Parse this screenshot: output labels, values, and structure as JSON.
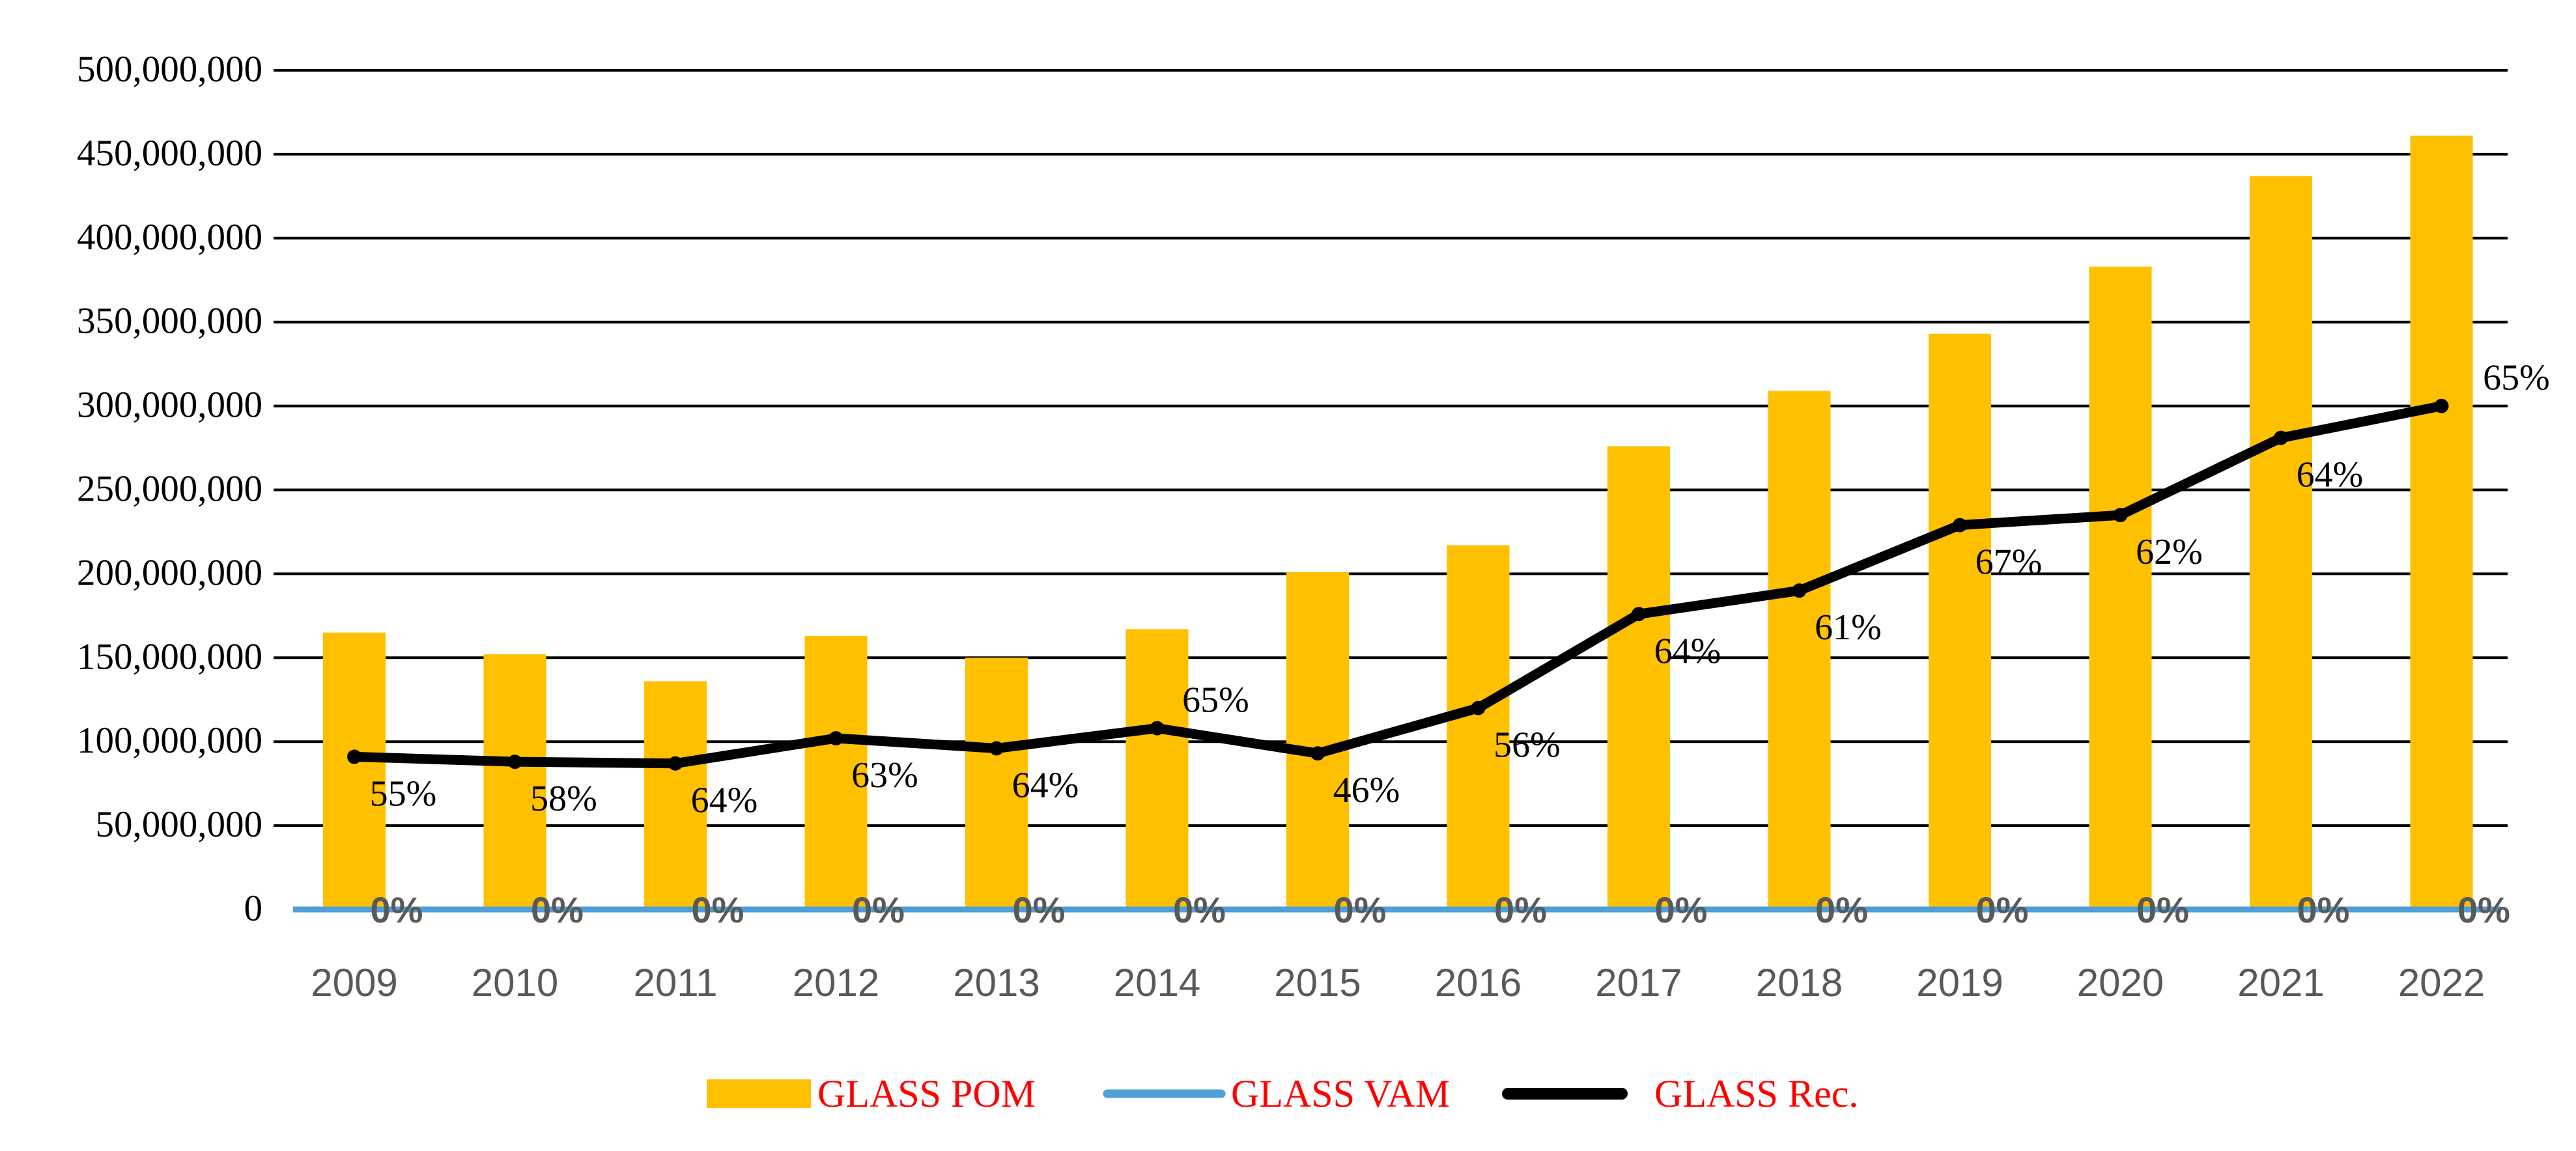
{
  "chart_data": {
    "type": "bar",
    "title": "",
    "xlabel": "",
    "ylabel": "",
    "ylim": [
      0,
      500000000
    ],
    "yticks": [
      0,
      50000000,
      100000000,
      150000000,
      200000000,
      250000000,
      300000000,
      350000000,
      400000000,
      450000000,
      500000000
    ],
    "ytick_labels": [
      "0",
      "50,000,000",
      "100,000,000",
      "150,000,000",
      "200,000,000",
      "250,000,000",
      "300,000,000",
      "350,000,000",
      "400,000,000",
      "450,000,000",
      "500,000,000"
    ],
    "categories": [
      "2009",
      "2010",
      "2011",
      "2012",
      "2013",
      "2014",
      "2015",
      "2016",
      "2017",
      "2018",
      "2019",
      "2020",
      "2021",
      "2022"
    ],
    "grid": true,
    "legend_position": "bottom",
    "series": [
      {
        "name": "GLASS POM",
        "kind": "bar",
        "color": "#FFC000",
        "values": [
          165000000,
          152000000,
          136000000,
          163000000,
          150000000,
          167000000,
          201000000,
          217000000,
          276000000,
          309000000,
          343000000,
          383000000,
          437000000,
          461000000
        ]
      },
      {
        "name": "GLASS VAM",
        "kind": "line",
        "color": "#4F9FD8",
        "values": [
          0,
          0,
          0,
          0,
          0,
          0,
          0,
          0,
          0,
          0,
          0,
          0,
          0,
          0
        ],
        "labels": [
          "0%",
          "0%",
          "0%",
          "0%",
          "0%",
          "0%",
          "0%",
          "0%",
          "0%",
          "0%",
          "0%",
          "0%",
          "0%",
          "0%"
        ],
        "label_color": "#595959"
      },
      {
        "name": "GLASS Rec.",
        "kind": "line",
        "color": "#000000",
        "values": [
          91000000,
          88000000,
          87000000,
          102000000,
          96000000,
          108000000,
          93000000,
          120000000,
          176000000,
          190000000,
          229000000,
          235000000,
          281000000,
          300000000
        ],
        "labels": [
          "55%",
          "58%",
          "64%",
          "63%",
          "64%",
          "65%",
          "46%",
          "56%",
          "64%",
          "61%",
          "67%",
          "62%",
          "64%",
          "65%"
        ],
        "label_color": "#000000"
      }
    ],
    "legend": [
      {
        "label": "GLASS POM",
        "color": "#FFC000",
        "text_color": "#FF0000"
      },
      {
        "label": "GLASS VAM",
        "color": "#4F9FD8",
        "text_color": "#FF0000"
      },
      {
        "label": "GLASS Rec.",
        "color": "#000000",
        "text_color": "#FF0000"
      }
    ],
    "colors": {
      "grid": "#000000",
      "tick_label_y": "#000000",
      "tick_label_x": "#595959"
    }
  }
}
